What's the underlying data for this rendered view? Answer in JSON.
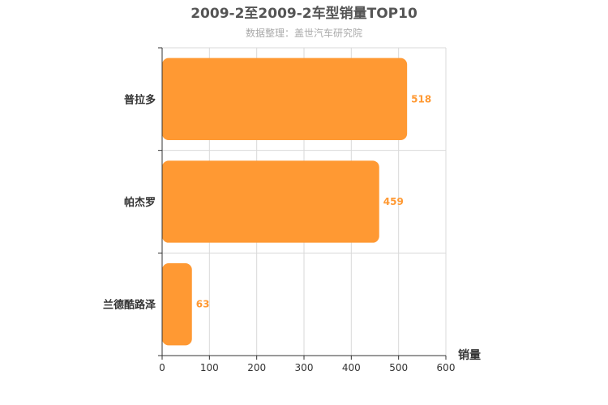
{
  "chart_data": {
    "type": "bar",
    "orientation": "horizontal",
    "title": "2009-2至2009-2车型销量TOP10",
    "subtitle": "数据整理：盖世汽车研究院",
    "xlabel": "销量",
    "ylabel": "",
    "categories": [
      "普拉多",
      "帕杰罗",
      "兰德酷路泽"
    ],
    "values": [
      518,
      459,
      63
    ],
    "xlim": [
      0,
      600
    ],
    "xticks": [
      0,
      100,
      200,
      300,
      400,
      500,
      600
    ],
    "grid": true,
    "bar_color": "#ff9933",
    "label_color": "#ff9933"
  }
}
